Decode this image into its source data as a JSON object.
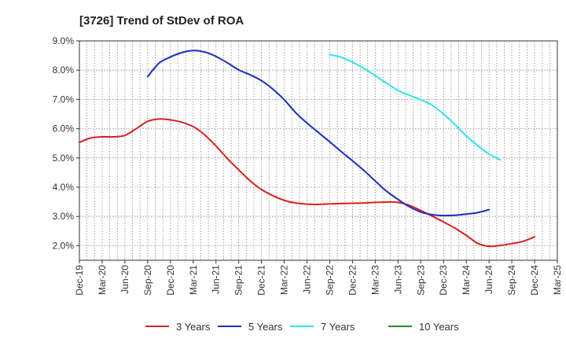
{
  "chart_data": {
    "type": "line",
    "title": "[3726]  Trend of StDev of ROA",
    "xlabel": "",
    "ylabel": "",
    "x_ticks": [
      "Dec-19",
      "Mar-20",
      "Jun-20",
      "Sep-20",
      "Dec-20",
      "Mar-21",
      "Jun-21",
      "Sep-21",
      "Dec-21",
      "Mar-22",
      "Jun-22",
      "Sep-22",
      "Dec-22",
      "Mar-23",
      "Jun-23",
      "Sep-23",
      "Dec-23",
      "Mar-24",
      "Jun-24",
      "Sep-24",
      "Dec-24",
      "Mar-25"
    ],
    "y_ticks": [
      "2.0%",
      "3.0%",
      "4.0%",
      "5.0%",
      "6.0%",
      "7.0%",
      "8.0%",
      "9.0%"
    ],
    "ylim": [
      1.5,
      9.0
    ],
    "grid": true,
    "legend_position": "bottom",
    "series": [
      {
        "name": "3 Years",
        "color": "#dd1f1f",
        "start_index": 0,
        "values": [
          5.53,
          5.68,
          5.72,
          5.72,
          5.77,
          6.0,
          6.25,
          6.33,
          6.3,
          6.22,
          6.07,
          5.79,
          5.41,
          4.98,
          4.59,
          4.22,
          3.92,
          3.71,
          3.55,
          3.46,
          3.42,
          3.41,
          3.43,
          3.44,
          3.45,
          3.46,
          3.48,
          3.49,
          3.48,
          3.38,
          3.2,
          3.01,
          2.81,
          2.6,
          2.35,
          2.08,
          1.98,
          2.01,
          2.07,
          2.15,
          2.3
        ]
      },
      {
        "name": "5 Years",
        "color": "#1a2fbd",
        "start_index": 6,
        "values": [
          7.78,
          8.24,
          8.45,
          8.6,
          8.67,
          8.62,
          8.47,
          8.25,
          8.01,
          7.84,
          7.64,
          7.35,
          6.99,
          6.55,
          6.19,
          5.87,
          5.55,
          5.22,
          4.9,
          4.57,
          4.21,
          3.86,
          3.58,
          3.33,
          3.15,
          3.06,
          3.03,
          3.04,
          3.08,
          3.13,
          3.23
        ]
      },
      {
        "name": "7 Years",
        "color": "#2ee6e6",
        "start_index": 22,
        "values": [
          8.53,
          8.44,
          8.27,
          8.06,
          7.81,
          7.55,
          7.31,
          7.14,
          6.99,
          6.8,
          6.5,
          6.14,
          5.75,
          5.42,
          5.13,
          4.93
        ]
      },
      {
        "name": "10 Years",
        "color": "#2a8a2a",
        "start_index": null,
        "values": []
      }
    ]
  }
}
